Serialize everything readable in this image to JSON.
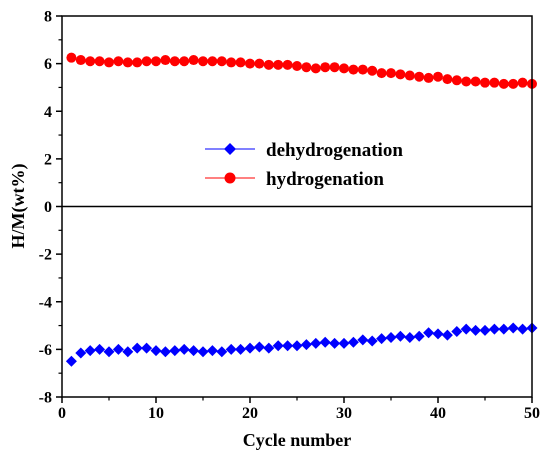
{
  "chart_data": {
    "type": "scatter",
    "title": "",
    "xlabel": "Cycle number",
    "ylabel": "H/M(wt%)",
    "xlim": [
      0,
      50
    ],
    "ylim": [
      -8,
      8
    ],
    "x_ticks": [
      0,
      10,
      20,
      30,
      40,
      50
    ],
    "y_ticks": [
      -8,
      -6,
      -4,
      -2,
      0,
      2,
      4,
      6,
      8
    ],
    "grid": false,
    "zero_line": true,
    "legend_position": "center",
    "series": [
      {
        "name": "dehydrogenation",
        "color": "#0000ff",
        "marker": "diamond",
        "x": [
          1,
          2,
          3,
          4,
          5,
          6,
          7,
          8,
          9,
          10,
          11,
          12,
          13,
          14,
          15,
          16,
          17,
          18,
          19,
          20,
          21,
          22,
          23,
          24,
          25,
          26,
          27,
          28,
          29,
          30,
          31,
          32,
          33,
          34,
          35,
          36,
          37,
          38,
          39,
          40,
          41,
          42,
          43,
          44,
          45,
          46,
          47,
          48,
          49,
          50
        ],
        "y": [
          -6.5,
          -6.15,
          -6.05,
          -6.0,
          -6.1,
          -6.0,
          -6.1,
          -5.95,
          -5.95,
          -6.05,
          -6.1,
          -6.05,
          -6.0,
          -6.05,
          -6.1,
          -6.05,
          -6.1,
          -6.0,
          -6.0,
          -5.95,
          -5.9,
          -5.95,
          -5.85,
          -5.85,
          -5.85,
          -5.8,
          -5.75,
          -5.7,
          -5.75,
          -5.75,
          -5.7,
          -5.6,
          -5.65,
          -5.55,
          -5.5,
          -5.45,
          -5.5,
          -5.45,
          -5.3,
          -5.35,
          -5.4,
          -5.25,
          -5.15,
          -5.2,
          -5.2,
          -5.15,
          -5.15,
          -5.1,
          -5.15,
          -5.1
        ]
      },
      {
        "name": "hydrogenation",
        "color": "#ff0000",
        "marker": "circle",
        "x": [
          1,
          2,
          3,
          4,
          5,
          6,
          7,
          8,
          9,
          10,
          11,
          12,
          13,
          14,
          15,
          16,
          17,
          18,
          19,
          20,
          21,
          22,
          23,
          24,
          25,
          26,
          27,
          28,
          29,
          30,
          31,
          32,
          33,
          34,
          35,
          36,
          37,
          38,
          39,
          40,
          41,
          42,
          43,
          44,
          45,
          46,
          47,
          48,
          49,
          50
        ],
        "y": [
          6.25,
          6.15,
          6.1,
          6.1,
          6.05,
          6.1,
          6.05,
          6.05,
          6.1,
          6.1,
          6.15,
          6.1,
          6.1,
          6.15,
          6.1,
          6.1,
          6.1,
          6.05,
          6.05,
          6.0,
          6.0,
          5.95,
          5.95,
          5.95,
          5.9,
          5.85,
          5.8,
          5.85,
          5.85,
          5.8,
          5.75,
          5.75,
          5.7,
          5.6,
          5.6,
          5.55,
          5.5,
          5.45,
          5.4,
          5.45,
          5.35,
          5.3,
          5.25,
          5.25,
          5.2,
          5.2,
          5.15,
          5.15,
          5.2,
          5.15
        ]
      }
    ]
  }
}
